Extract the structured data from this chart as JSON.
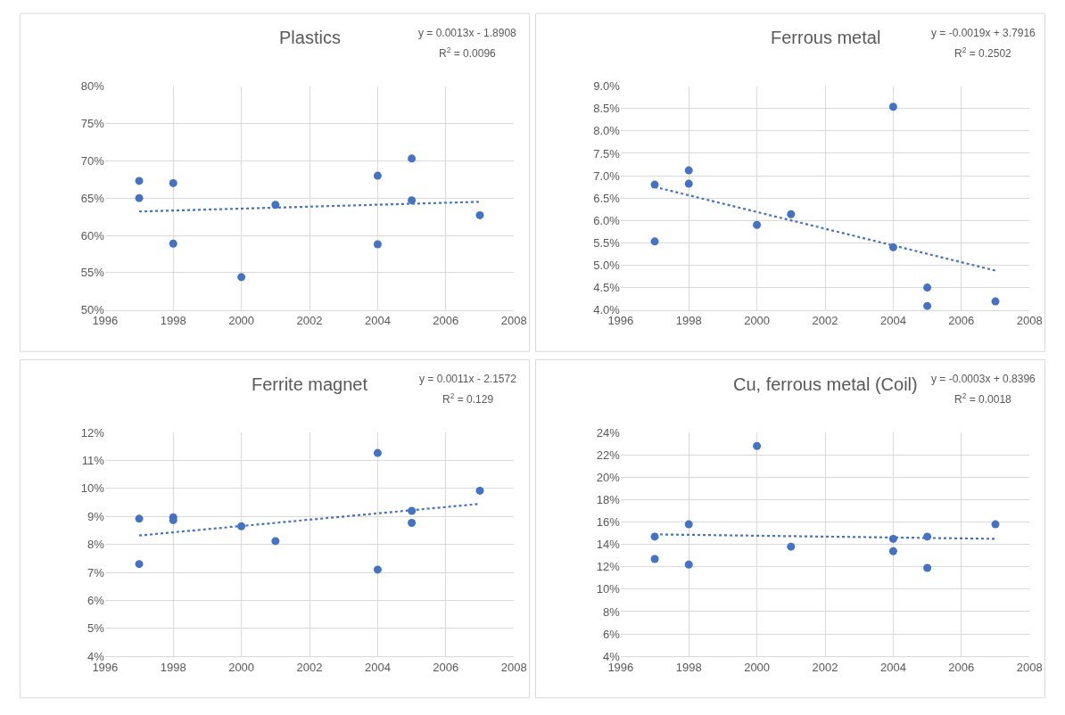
{
  "chart_data": [
    {
      "type": "scatter",
      "title": "Plastics",
      "annotations": [
        "y = 0.0013x - 1.8908",
        "R$^{2}$ = 0.0096"
      ],
      "grid": true,
      "xlim": [
        1996,
        2008
      ],
      "xticks": [
        1996,
        1998,
        2000,
        2002,
        2004,
        2006,
        2008
      ],
      "ylim": [
        50,
        80
      ],
      "yticks": [
        {
          "value": 50,
          "label": "50%"
        },
        {
          "value": 55,
          "label": "55%"
        },
        {
          "value": 60,
          "label": "60%"
        },
        {
          "value": 65,
          "label": "65%"
        },
        {
          "value": 70,
          "label": "70%"
        },
        {
          "value": 75,
          "label": "75%"
        },
        {
          "value": 80,
          "label": "80%"
        }
      ],
      "series": [
        {
          "color": "#4472c4",
          "x": [
            1997,
            1997,
            1998,
            1998,
            2000,
            2001,
            2004,
            2004,
            2005,
            2005,
            2007
          ],
          "values": [
            67.3,
            65.0,
            67.0,
            58.9,
            54.4,
            64.1,
            68.0,
            58.8,
            70.3,
            64.7,
            62.7
          ]
        },
        {
          "type": "line",
          "color": "#4472c4",
          "line_style": "dotted",
          "x": [
            1997,
            2007
          ],
          "values": [
            63.2,
            64.5
          ]
        }
      ]
    },
    {
      "type": "scatter",
      "title": "Ferrous metal",
      "annotations": [
        "y = -0.0019x + 3.7916",
        "R$^{2}$ = 0.2502"
      ],
      "grid": true,
      "xlim": [
        1996,
        2008
      ],
      "xticks": [
        1996,
        1998,
        2000,
        2002,
        2004,
        2006,
        2008
      ],
      "ylim": [
        4.0,
        9.0
      ],
      "yticks": [
        {
          "value": 4.0,
          "label": "4.0%"
        },
        {
          "value": 4.5,
          "label": "4.5%"
        },
        {
          "value": 5.0,
          "label": "5.0%"
        },
        {
          "value": 5.5,
          "label": "5.5%"
        },
        {
          "value": 6.0,
          "label": "6.0%"
        },
        {
          "value": 6.5,
          "label": "6.5%"
        },
        {
          "value": 7.0,
          "label": "7.0%"
        },
        {
          "value": 7.5,
          "label": "7.5%"
        },
        {
          "value": 8.0,
          "label": "8.0%"
        },
        {
          "value": 8.5,
          "label": "8.5%"
        },
        {
          "value": 9.0,
          "label": "9.0%"
        }
      ],
      "series": [
        {
          "color": "#4472c4",
          "x": [
            1997,
            1997,
            1998,
            1998,
            2000,
            2001,
            2004,
            2004,
            2005,
            2005,
            2007
          ],
          "values": [
            6.8,
            5.53,
            7.12,
            6.82,
            5.9,
            6.14,
            8.54,
            5.4,
            4.5,
            4.09,
            4.19
          ]
        },
        {
          "type": "line",
          "color": "#4472c4",
          "line_style": "dotted",
          "x": [
            1997,
            2007
          ],
          "values": [
            6.75,
            4.88
          ]
        }
      ]
    },
    {
      "type": "scatter",
      "title": "Ferrite magnet",
      "annotations": [
        "y = 0.0011x - 2.1572",
        "R$^{2}$ = 0.129"
      ],
      "grid": true,
      "xlim": [
        1996,
        2008
      ],
      "xticks": [
        1996,
        1998,
        2000,
        2002,
        2004,
        2006,
        2008
      ],
      "ylim": [
        4,
        12
      ],
      "yticks": [
        {
          "value": 4,
          "label": "4%"
        },
        {
          "value": 5,
          "label": "5%"
        },
        {
          "value": 6,
          "label": "6%"
        },
        {
          "value": 7,
          "label": "7%"
        },
        {
          "value": 8,
          "label": "8%"
        },
        {
          "value": 9,
          "label": "9%"
        },
        {
          "value": 10,
          "label": "10%"
        },
        {
          "value": 11,
          "label": "11%"
        },
        {
          "value": 12,
          "label": "12%"
        }
      ],
      "series": [
        {
          "color": "#4472c4",
          "x": [
            1997,
            1997,
            1998,
            1998,
            2000,
            2001,
            2004,
            2004,
            2005,
            2005,
            2007
          ],
          "values": [
            8.92,
            7.3,
            8.97,
            8.87,
            8.65,
            8.12,
            11.27,
            7.1,
            9.2,
            8.77,
            9.92
          ]
        },
        {
          "type": "line",
          "color": "#4472c4",
          "line_style": "dotted",
          "x": [
            1997,
            2007
          ],
          "values": [
            8.32,
            9.45
          ]
        }
      ]
    },
    {
      "type": "scatter",
      "title": "Cu, ferrous metal (Coil)",
      "annotations": [
        "y = -0.0003x + 0.8396",
        "R$^{2}$ = 0.0018"
      ],
      "grid": true,
      "xlim": [
        1996,
        2008
      ],
      "xticks": [
        1996,
        1998,
        2000,
        2002,
        2004,
        2006,
        2008
      ],
      "ylim": [
        4,
        24
      ],
      "yticks": [
        {
          "value": 4,
          "label": "4%"
        },
        {
          "value": 6,
          "label": "6%"
        },
        {
          "value": 8,
          "label": "8%"
        },
        {
          "value": 10,
          "label": "10%"
        },
        {
          "value": 12,
          "label": "12%"
        },
        {
          "value": 14,
          "label": "14%"
        },
        {
          "value": 16,
          "label": "16%"
        },
        {
          "value": 18,
          "label": "18%"
        },
        {
          "value": 20,
          "label": "20%"
        },
        {
          "value": 22,
          "label": "22%"
        },
        {
          "value": 24,
          "label": "24%"
        }
      ],
      "series": [
        {
          "color": "#4472c4",
          "x": [
            1997,
            1997,
            1998,
            1998,
            2000,
            2001,
            2004,
            2004,
            2005,
            2005,
            2007
          ],
          "values": [
            14.7,
            12.7,
            15.8,
            12.2,
            22.8,
            13.8,
            14.5,
            13.4,
            14.7,
            11.9,
            15.8
          ]
        },
        {
          "type": "line",
          "color": "#4472c4",
          "line_style": "dotted",
          "x": [
            1997,
            2007
          ],
          "values": [
            14.9,
            14.5
          ]
        }
      ]
    }
  ]
}
